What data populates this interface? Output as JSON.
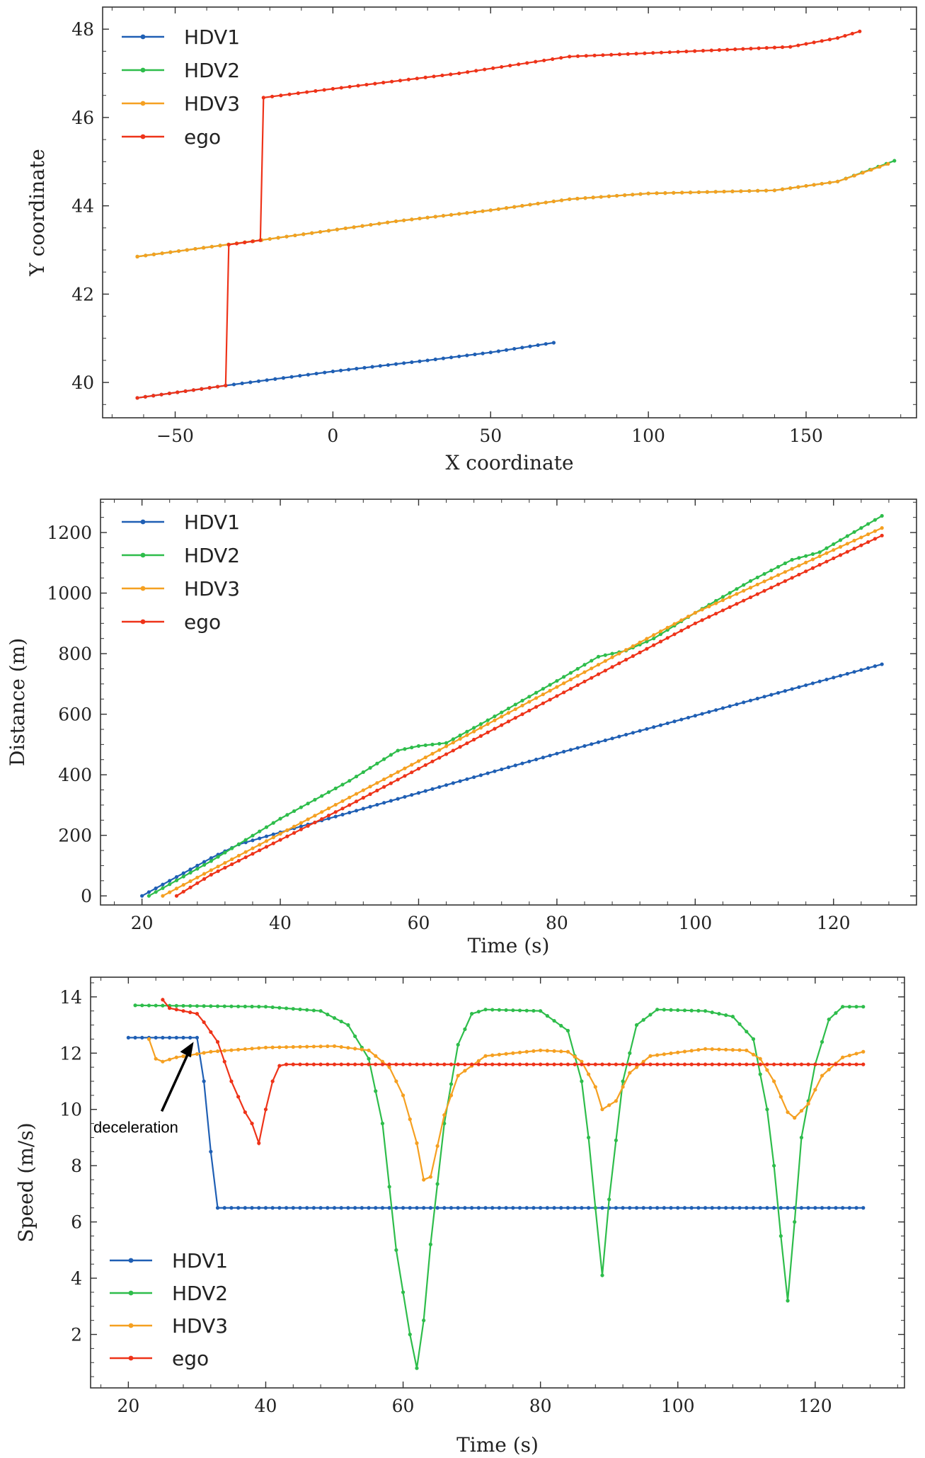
{
  "colors": {
    "HDV1": "#1f5fb4",
    "HDV2": "#2ebd4b",
    "HDV3": "#f5a021",
    "ego": "#ee3319"
  },
  "chart_data": [
    {
      "type": "line",
      "name": "trajectory",
      "xlabel": "X coordinate",
      "ylabel": "Y coordinate",
      "xlim": [
        -73,
        185
      ],
      "ylim": [
        39.2,
        48.5
      ],
      "xticks": [
        -50,
        0,
        50,
        100,
        150
      ],
      "xtick_labels": [
        "−50",
        "0",
        "50",
        "100",
        "150"
      ],
      "yticks": [
        40,
        42,
        44,
        46,
        48
      ],
      "ytick_labels": [
        "40",
        "42",
        "44",
        "46",
        "48"
      ],
      "legend": "top-left",
      "series": [
        {
          "name": "HDV1",
          "points": [
            [
              -62,
              39.65
            ],
            [
              -34,
              39.93
            ],
            [
              0,
              40.25
            ],
            [
              30,
              40.5
            ],
            [
              50,
              40.68
            ],
            [
              70,
              40.9
            ]
          ]
        },
        {
          "name": "HDV2",
          "points": [
            [
              -62,
              42.85
            ],
            [
              -20,
              43.25
            ],
            [
              20,
              43.65
            ],
            [
              50,
              43.9
            ],
            [
              75,
              44.15
            ],
            [
              100,
              44.28
            ],
            [
              140,
              44.35
            ],
            [
              160,
              44.55
            ],
            [
              178,
              45.02
            ]
          ]
        },
        {
          "name": "HDV3",
          "points": [
            [
              -62,
              42.85
            ],
            [
              -20,
              43.25
            ],
            [
              20,
              43.65
            ],
            [
              50,
              43.9
            ],
            [
              75,
              44.15
            ],
            [
              100,
              44.28
            ],
            [
              140,
              44.35
            ],
            [
              160,
              44.55
            ],
            [
              176,
              44.95
            ]
          ]
        },
        {
          "name": "ego",
          "points": [
            [
              -62,
              39.65
            ],
            [
              -34,
              39.93
            ],
            [
              -33,
              43.12
            ],
            [
              -23,
              43.22
            ],
            [
              -22,
              46.45
            ],
            [
              0,
              46.65
            ],
            [
              40,
              47.0
            ],
            [
              75,
              47.38
            ],
            [
              120,
              47.52
            ],
            [
              145,
              47.6
            ],
            [
              160,
              47.8
            ],
            [
              167,
              47.95
            ]
          ]
        }
      ]
    },
    {
      "type": "line",
      "name": "distance",
      "xlabel": "Time (s)",
      "ylabel": "Distance (m)",
      "xlim": [
        14,
        132
      ],
      "ylim": [
        -30,
        1310
      ],
      "xticks": [
        20,
        40,
        60,
        80,
        100,
        120
      ],
      "xtick_labels": [
        "20",
        "40",
        "60",
        "80",
        "100",
        "120"
      ],
      "yticks": [
        0,
        200,
        400,
        600,
        800,
        1000,
        1200
      ],
      "ytick_labels": [
        "0",
        "200",
        "400",
        "600",
        "800",
        "1000",
        "1200"
      ],
      "legend": "top-left",
      "series": [
        {
          "name": "HDV1",
          "points": [
            [
              20,
              0
            ],
            [
              30,
              125
            ],
            [
              34,
              170
            ],
            [
              40,
              210
            ],
            [
              60,
              340
            ],
            [
              80,
              470
            ],
            [
              100,
              595
            ],
            [
              127,
              765
            ]
          ]
        },
        {
          "name": "HDV2",
          "points": [
            [
              21,
              0
            ],
            [
              30,
              115
            ],
            [
              40,
              255
            ],
            [
              50,
              380
            ],
            [
              57,
              480
            ],
            [
              60,
              495
            ],
            [
              64,
              505
            ],
            [
              70,
              580
            ],
            [
              80,
              710
            ],
            [
              86,
              790
            ],
            [
              90,
              810
            ],
            [
              94,
              850
            ],
            [
              100,
              935
            ],
            [
              108,
              1040
            ],
            [
              114,
              1110
            ],
            [
              118,
              1135
            ],
            [
              127,
              1255
            ]
          ]
        },
        {
          "name": "HDV3",
          "points": [
            [
              23,
              0
            ],
            [
              30,
              85
            ],
            [
              40,
              205
            ],
            [
              50,
              325
            ],
            [
              60,
              445
            ],
            [
              80,
              690
            ],
            [
              100,
              935
            ],
            [
              127,
              1215
            ]
          ]
        },
        {
          "name": "ego",
          "points": [
            [
              25,
              0
            ],
            [
              30,
              70
            ],
            [
              40,
              185
            ],
            [
              50,
              300
            ],
            [
              60,
              420
            ],
            [
              80,
              660
            ],
            [
              100,
              900
            ],
            [
              127,
              1190
            ]
          ]
        }
      ]
    },
    {
      "type": "line",
      "name": "speed",
      "xlabel": "Time (s)",
      "ylabel": "Speed (m/s)",
      "xlim": [
        14.5,
        133
      ],
      "ylim": [
        0.1,
        14.7
      ],
      "xticks": [
        20,
        40,
        60,
        80,
        100,
        120
      ],
      "xtick_labels": [
        "20",
        "40",
        "60",
        "80",
        "100",
        "120"
      ],
      "yticks": [
        2,
        4,
        6,
        8,
        10,
        12,
        14
      ],
      "ytick_labels": [
        "2",
        "4",
        "6",
        "8",
        "10",
        "12",
        "14"
      ],
      "legend": "bottom-left",
      "annotation": {
        "text": "deceleration",
        "x": 29.5,
        "y": 12.4
      },
      "series": [
        {
          "name": "HDV1",
          "points": [
            [
              20,
              12.55
            ],
            [
              30,
              12.55
            ],
            [
              31,
              11.0
            ],
            [
              32,
              8.5
            ],
            [
              33,
              6.5
            ],
            [
              127,
              6.5
            ]
          ]
        },
        {
          "name": "HDV2",
          "points": [
            [
              21,
              13.7
            ],
            [
              40,
              13.65
            ],
            [
              48,
              13.5
            ],
            [
              52,
              13.0
            ],
            [
              55,
              11.8
            ],
            [
              57,
              9.5
            ],
            [
              59,
              5.0
            ],
            [
              61,
              2.0
            ],
            [
              62,
              0.8
            ],
            [
              63,
              2.5
            ],
            [
              64,
              5.2
            ],
            [
              66,
              9.5
            ],
            [
              68,
              12.3
            ],
            [
              70,
              13.4
            ],
            [
              72,
              13.55
            ],
            [
              80,
              13.5
            ],
            [
              84,
              12.8
            ],
            [
              86,
              11.0
            ],
            [
              87,
              9.0
            ],
            [
              88,
              6.5
            ],
            [
              89,
              4.1
            ],
            [
              90,
              6.8
            ],
            [
              92,
              11.0
            ],
            [
              94,
              13.0
            ],
            [
              97,
              13.55
            ],
            [
              104,
              13.5
            ],
            [
              108,
              13.3
            ],
            [
              111,
              12.5
            ],
            [
              113,
              10.0
            ],
            [
              114,
              8.0
            ],
            [
              115,
              5.5
            ],
            [
              116,
              3.2
            ],
            [
              117,
              6.0
            ],
            [
              118,
              9.0
            ],
            [
              120,
              11.6
            ],
            [
              122,
              13.2
            ],
            [
              124,
              13.65
            ],
            [
              127,
              13.65
            ]
          ]
        },
        {
          "name": "HDV3",
          "points": [
            [
              23,
              12.5
            ],
            [
              24,
              11.8
            ],
            [
              25,
              11.7
            ],
            [
              27,
              11.85
            ],
            [
              32,
              12.05
            ],
            [
              40,
              12.2
            ],
            [
              50,
              12.25
            ],
            [
              55,
              12.1
            ],
            [
              58,
              11.5
            ],
            [
              60,
              10.5
            ],
            [
              62,
              8.8
            ],
            [
              63,
              7.5
            ],
            [
              64,
              7.6
            ],
            [
              66,
              9.8
            ],
            [
              68,
              11.2
            ],
            [
              72,
              11.9
            ],
            [
              80,
              12.1
            ],
            [
              84,
              12.05
            ],
            [
              86,
              11.7
            ],
            [
              88,
              10.8
            ],
            [
              89,
              10.0
            ],
            [
              91,
              10.3
            ],
            [
              93,
              11.3
            ],
            [
              96,
              11.9
            ],
            [
              104,
              12.15
            ],
            [
              110,
              12.1
            ],
            [
              112,
              11.8
            ],
            [
              114,
              11.0
            ],
            [
              116,
              9.9
            ],
            [
              117,
              9.7
            ],
            [
              119,
              10.2
            ],
            [
              121,
              11.2
            ],
            [
              124,
              11.85
            ],
            [
              127,
              12.05
            ]
          ]
        },
        {
          "name": "ego",
          "points": [
            [
              25,
              13.9
            ],
            [
              26,
              13.6
            ],
            [
              28,
              13.5
            ],
            [
              30,
              13.4
            ],
            [
              31,
              13.1
            ],
            [
              33,
              12.4
            ],
            [
              35,
              11.0
            ],
            [
              37,
              9.9
            ],
            [
              38,
              9.5
            ],
            [
              39,
              8.8
            ],
            [
              40,
              10.0
            ],
            [
              41,
              11.0
            ],
            [
              42,
              11.55
            ],
            [
              43,
              11.6
            ],
            [
              127,
              11.6
            ]
          ]
        }
      ]
    }
  ]
}
